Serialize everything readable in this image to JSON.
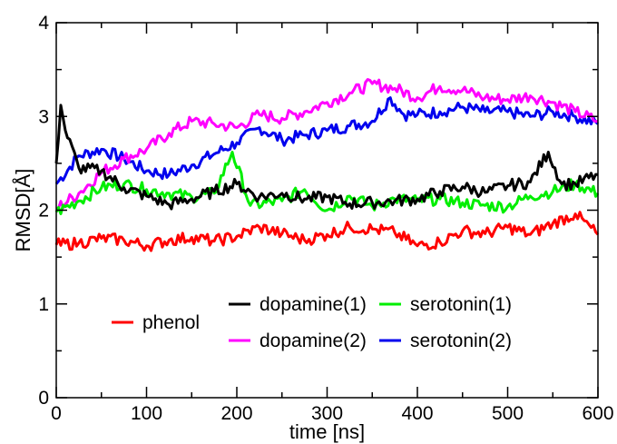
{
  "chart_data": {
    "type": "line",
    "xlabel": "time [ns]",
    "ylabel": "RMSD[Å]",
    "xlim": [
      0,
      600
    ],
    "ylim": [
      0,
      4
    ],
    "xticks": [
      0,
      100,
      200,
      300,
      400,
      500,
      600
    ],
    "yticks": [
      0,
      1,
      2,
      3,
      4
    ],
    "grid": false,
    "legend_placement": "lower-center",
    "series": [
      {
        "name": "phenol",
        "color": "#ff0000",
        "x": [
          0,
          25,
          50,
          75,
          100,
          125,
          150,
          175,
          200,
          225,
          250,
          275,
          300,
          325,
          350,
          375,
          400,
          425,
          450,
          475,
          500,
          525,
          550,
          575,
          600
        ],
        "y": [
          1.63,
          1.65,
          1.7,
          1.68,
          1.62,
          1.68,
          1.71,
          1.67,
          1.72,
          1.82,
          1.75,
          1.68,
          1.74,
          1.82,
          1.8,
          1.76,
          1.62,
          1.66,
          1.78,
          1.75,
          1.82,
          1.74,
          1.86,
          1.96,
          1.74
        ]
      },
      {
        "name": "dopamine(1)",
        "color": "#000000",
        "x": [
          0,
          5,
          10,
          25,
          50,
          75,
          100,
          125,
          150,
          175,
          200,
          225,
          250,
          275,
          300,
          325,
          350,
          375,
          400,
          425,
          450,
          475,
          500,
          525,
          545,
          560,
          575,
          600
        ],
        "y": [
          2.5,
          3.12,
          2.85,
          2.45,
          2.42,
          2.24,
          2.15,
          2.06,
          2.12,
          2.2,
          2.28,
          2.14,
          2.18,
          2.12,
          2.14,
          2.07,
          2.08,
          2.1,
          2.12,
          2.2,
          2.25,
          2.19,
          2.26,
          2.3,
          2.62,
          2.28,
          2.28,
          2.38
        ]
      },
      {
        "name": "serotonin(1)",
        "color": "#00ee00",
        "x": [
          0,
          25,
          50,
          75,
          100,
          125,
          150,
          175,
          195,
          215,
          250,
          275,
          300,
          325,
          350,
          375,
          400,
          425,
          450,
          475,
          500,
          525,
          550,
          575,
          600
        ],
        "y": [
          1.98,
          2.1,
          2.24,
          2.28,
          2.22,
          2.18,
          2.14,
          2.18,
          2.62,
          2.05,
          2.1,
          2.22,
          2.0,
          2.15,
          2.04,
          2.12,
          2.1,
          2.12,
          2.08,
          2.05,
          2.04,
          2.15,
          2.2,
          2.28,
          2.18
        ]
      },
      {
        "name": "dopamine(2)",
        "color": "#ff00ff",
        "x": [
          0,
          25,
          50,
          75,
          100,
          125,
          150,
          175,
          200,
          225,
          250,
          275,
          300,
          325,
          350,
          375,
          400,
          425,
          450,
          475,
          500,
          525,
          550,
          575,
          600
        ],
        "y": [
          2.02,
          2.18,
          2.4,
          2.55,
          2.65,
          2.82,
          2.95,
          2.92,
          2.88,
          3.02,
          2.98,
          3.05,
          3.15,
          3.25,
          3.35,
          3.3,
          3.2,
          3.32,
          3.28,
          3.2,
          3.18,
          3.22,
          3.15,
          3.05,
          2.95
        ]
      },
      {
        "name": "serotonin(2)",
        "color": "#0000ee",
        "x": [
          0,
          25,
          50,
          75,
          100,
          125,
          150,
          175,
          200,
          225,
          250,
          275,
          300,
          325,
          350,
          370,
          385,
          400,
          425,
          450,
          475,
          500,
          525,
          550,
          575,
          600
        ],
        "y": [
          2.28,
          2.58,
          2.65,
          2.55,
          2.42,
          2.38,
          2.48,
          2.6,
          2.72,
          2.88,
          2.75,
          2.8,
          2.85,
          2.9,
          2.95,
          3.2,
          3.02,
          3.02,
          3.05,
          3.1,
          3.05,
          3.05,
          3.0,
          3.05,
          3.0,
          2.92
        ]
      }
    ]
  }
}
